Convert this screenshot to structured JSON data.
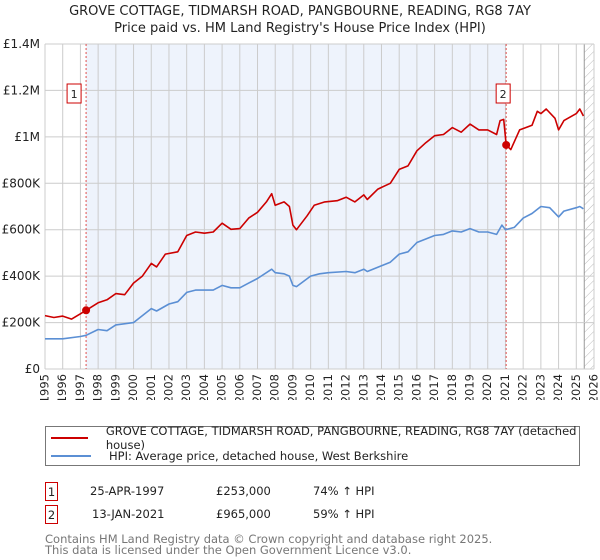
{
  "chart_data": {
    "type": "line",
    "title": "GROVE COTTAGE, TIDMARSH ROAD, PANGBOURNE, READING, RG8 7AY",
    "subtitle": "Price paid vs. HM Land Registry's House Price Index (HPI)",
    "xlim": [
      1995,
      2026
    ],
    "ylim": [
      0,
      1400000
    ],
    "x_ticks": [
      "1995",
      "1996",
      "1997",
      "1998",
      "1999",
      "2000",
      "2001",
      "2002",
      "2003",
      "2004",
      "2005",
      "2006",
      "2007",
      "2008",
      "2009",
      "2010",
      "2011",
      "2012",
      "2013",
      "2014",
      "2015",
      "2016",
      "2017",
      "2018",
      "2019",
      "2020",
      "2021",
      "2022",
      "2023",
      "2024",
      "2025",
      "2026"
    ],
    "y_ticks": [
      {
        "v": 0,
        "label": "£0"
      },
      {
        "v": 200000,
        "label": "£200K"
      },
      {
        "v": 400000,
        "label": "£400K"
      },
      {
        "v": 600000,
        "label": "£600K"
      },
      {
        "v": 800000,
        "label": "£800K"
      },
      {
        "v": 1000000,
        "label": "£1M"
      },
      {
        "v": 1200000,
        "label": "£1.2M"
      },
      {
        "v": 1400000,
        "label": "£1.4M"
      }
    ],
    "grid": true,
    "series": [
      {
        "name": "GROVE COTTAGE, TIDMARSH ROAD, PANGBOURNE, READING, RG8 7AY (detached house)",
        "color": "#cc0000",
        "x": [
          1995,
          1995.5,
          1996,
          1996.5,
          1997,
          1997.32,
          1998,
          1998.5,
          1999,
          1999.5,
          2000,
          2000.5,
          2001,
          2001.3,
          2001.8,
          2002.5,
          2003,
          2003.5,
          2004,
          2004.5,
          2005,
          2005.5,
          2006,
          2006.5,
          2007,
          2007.5,
          2007.8,
          2008,
          2008.5,
          2008.8,
          2009,
          2009.2,
          2009.8,
          2010.2,
          2010.8,
          2011.5,
          2012,
          2012.5,
          2013,
          2013.2,
          2013.8,
          2014.5,
          2015,
          2015.5,
          2016,
          2016.5,
          2017,
          2017.5,
          2018,
          2018.5,
          2019,
          2019.5,
          2020,
          2020.5,
          2020.7,
          2020.9,
          2021.04,
          2021.3,
          2021.8,
          2022.5,
          2022.8,
          2023,
          2023.3,
          2023.8,
          2024,
          2024.3,
          2025,
          2025.2,
          2025.4
        ],
        "y": [
          230,
          222,
          228,
          215,
          238,
          253,
          285,
          298,
          325,
          320,
          370,
          400,
          455,
          440,
          495,
          505,
          575,
          590,
          585,
          590,
          628,
          602,
          605,
          650,
          675,
          720,
          755,
          705,
          720,
          700,
          620,
          600,
          660,
          705,
          720,
          725,
          740,
          720,
          750,
          730,
          775,
          800,
          860,
          875,
          940,
          975,
          1005,
          1010,
          1040,
          1020,
          1055,
          1030,
          1030,
          1010,
          1070,
          1075,
          965,
          945,
          1030,
          1050,
          1110,
          1100,
          1120,
          1080,
          1030,
          1070,
          1100,
          1120,
          1090
        ]
      },
      {
        "name": "HPI: Average price, detached house, West Berkshire",
        "color": "#5b8fd4",
        "x": [
          1995,
          1996,
          1997,
          1997.32,
          1998,
          1998.5,
          1999,
          2000,
          2000.5,
          2001,
          2001.3,
          2002,
          2002.5,
          2003,
          2003.5,
          2004.5,
          2005,
          2005.5,
          2006,
          2006.5,
          2007,
          2007.8,
          2008,
          2008.5,
          2008.8,
          2009,
          2009.2,
          2010,
          2010.5,
          2011,
          2012,
          2012.5,
          2013,
          2013.2,
          2014,
          2014.5,
          2015,
          2015.5,
          2016,
          2016.5,
          2017,
          2017.5,
          2018,
          2018.5,
          2019,
          2019.5,
          2020,
          2020.5,
          2020.8,
          2021,
          2021.5,
          2022,
          2022.5,
          2023,
          2023.5,
          2024,
          2024.3,
          2025,
          2025.2,
          2025.4
        ],
        "y": [
          130,
          130,
          140,
          145,
          170,
          165,
          190,
          200,
          230,
          260,
          250,
          280,
          290,
          330,
          340,
          340,
          360,
          350,
          350,
          370,
          390,
          430,
          415,
          410,
          400,
          360,
          355,
          400,
          410,
          415,
          420,
          415,
          430,
          420,
          445,
          460,
          495,
          505,
          545,
          560,
          575,
          580,
          595,
          590,
          605,
          590,
          590,
          580,
          620,
          600,
          610,
          650,
          670,
          700,
          695,
          655,
          680,
          695,
          700,
          690
        ],
        "y_unit": "thousands GBP"
      }
    ],
    "sales": [
      {
        "label": "1",
        "x": 1997.32,
        "y": 253000,
        "date": "25-APR-1997",
        "price": "£253,000",
        "hpi": "74% ↑ HPI"
      },
      {
        "label": "2",
        "x": 2021.04,
        "y": 965000,
        "date": "13-JAN-2021",
        "price": "£965,000",
        "hpi": "59% ↑ HPI"
      }
    ],
    "legend_placement": "bottom"
  },
  "footer": {
    "line1": "Contains HM Land Registry data © Crown copyright and database right 2025.",
    "line2": "This data is licensed under the Open Government Licence v3.0."
  }
}
